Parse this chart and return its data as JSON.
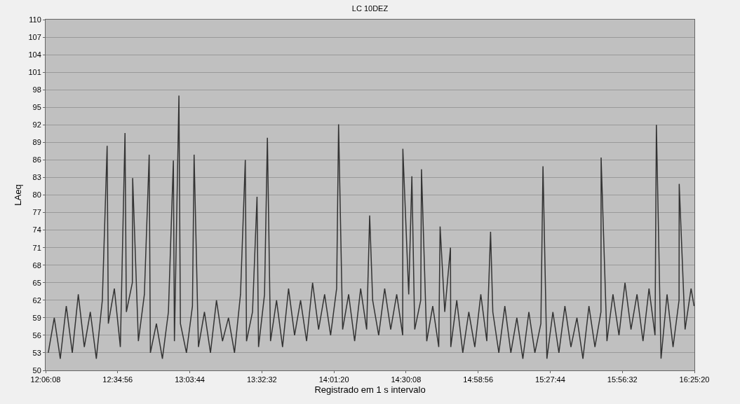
{
  "chart_data": {
    "type": "line",
    "title": "LC 10DEZ",
    "xlabel": "Registrado em 1 s intervalo",
    "ylabel": "LAeq",
    "x": [
      12.12,
      12.16,
      12.2,
      12.24,
      12.28,
      12.32,
      12.36,
      12.4,
      12.44,
      12.48,
      12.512,
      12.52,
      12.56,
      12.6,
      12.631,
      12.64,
      12.68,
      12.682,
      12.72,
      12.76,
      12.792,
      12.8,
      12.84,
      12.88,
      12.92,
      12.953,
      12.96,
      12.99,
      13.0,
      13.04,
      13.08,
      13.091,
      13.12,
      13.16,
      13.2,
      13.24,
      13.28,
      13.32,
      13.36,
      13.4,
      13.432,
      13.44,
      13.48,
      13.51,
      13.52,
      13.56,
      13.579,
      13.6,
      13.64,
      13.68,
      13.72,
      13.76,
      13.8,
      13.84,
      13.88,
      13.92,
      13.96,
      14.0,
      14.04,
      14.053,
      14.08,
      14.12,
      14.16,
      14.2,
      14.24,
      14.26,
      14.28,
      14.32,
      14.36,
      14.4,
      14.44,
      14.48,
      14.481,
      14.52,
      14.541,
      14.56,
      14.6,
      14.605,
      14.64,
      14.68,
      14.72,
      14.729,
      14.76,
      14.798,
      14.8,
      14.84,
      14.88,
      14.92,
      14.96,
      15.0,
      15.04,
      15.065,
      15.08,
      15.12,
      15.16,
      15.2,
      15.24,
      15.28,
      15.32,
      15.36,
      15.4,
      15.414,
      15.44,
      15.48,
      15.52,
      15.56,
      15.6,
      15.64,
      15.68,
      15.72,
      15.76,
      15.8,
      15.801,
      15.84,
      15.88,
      15.92,
      15.96,
      16.0,
      16.04,
      16.08,
      16.12,
      16.16,
      16.169,
      16.2,
      16.24,
      16.28,
      16.32,
      16.321,
      16.36,
      16.4,
      16.42
    ],
    "series": [
      {
        "color": "#333333",
        "values": [
          53,
          59,
          52,
          61,
          53,
          63,
          54,
          60,
          52,
          62,
          88.4,
          58,
          64,
          54,
          90.6,
          60,
          65,
          82.9,
          55,
          63,
          86.9,
          53,
          58,
          52,
          60,
          85.9,
          55,
          97,
          58,
          53,
          61,
          86.9,
          54,
          60,
          53,
          62,
          55,
          59,
          53,
          63,
          86,
          55,
          60,
          79.7,
          54,
          63,
          89.8,
          55,
          62,
          54,
          64,
          56,
          62,
          55,
          65,
          57,
          63,
          56,
          64,
          92.1,
          57,
          63,
          55,
          64,
          57,
          76.5,
          62,
          56,
          64,
          57,
          63,
          56,
          87.9,
          63,
          83.2,
          57,
          62,
          84.4,
          55,
          61,
          54,
          74.6,
          60,
          71,
          54,
          62,
          53,
          60,
          54,
          63,
          55,
          73.7,
          60,
          53,
          61,
          53,
          59,
          52,
          60,
          53,
          58,
          84.9,
          52,
          60,
          53,
          61,
          54,
          59,
          52,
          61,
          54,
          60,
          86.4,
          55,
          63,
          56,
          65,
          57,
          63,
          55,
          64,
          56,
          92,
          52,
          63,
          54,
          62,
          81.9,
          57,
          64,
          61
        ]
      }
    ],
    "xlim": [
      12.102222,
      16.422222
    ],
    "xticks": [
      {
        "value": 12.102222,
        "label": "12:06:08"
      },
      {
        "value": 12.582222,
        "label": "12:34:56"
      },
      {
        "value": 13.062222,
        "label": "13:03:44"
      },
      {
        "value": 13.542222,
        "label": "13:32:32"
      },
      {
        "value": 14.022222,
        "label": "14:01:20"
      },
      {
        "value": 14.502222,
        "label": "14:30:08"
      },
      {
        "value": 14.982222,
        "label": "14:58:56"
      },
      {
        "value": 15.462222,
        "label": "15:27:44"
      },
      {
        "value": 15.942222,
        "label": "15:56:32"
      },
      {
        "value": 16.422222,
        "label": "16:25:20"
      }
    ],
    "ylim": [
      50,
      110
    ],
    "yticks": [
      50,
      53,
      56,
      59,
      62,
      65,
      68,
      71,
      74,
      77,
      80,
      83,
      86,
      89,
      92,
      95,
      98,
      101,
      104,
      107,
      110
    ],
    "grid": "y",
    "marker": "none",
    "line_style": "solid"
  }
}
